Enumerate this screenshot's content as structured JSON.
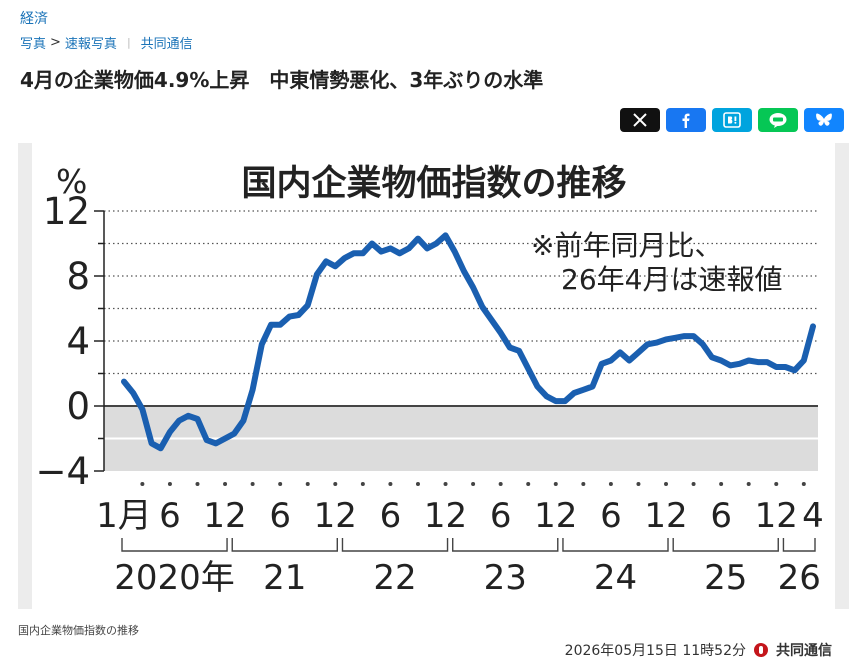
{
  "category": "経済",
  "breadcrumb": {
    "items": [
      "写真",
      "速報写真",
      "共同通信"
    ]
  },
  "headline": "4月の企業物価4.9%上昇　中東情勢悪化、3年ぶりの水準",
  "share": {
    "buttons": [
      {
        "icon": "x-icon",
        "color": "#111111"
      },
      {
        "icon": "facebook-icon",
        "color": "#1877f2"
      },
      {
        "icon": "hatena-icon",
        "color": "#00a4de"
      },
      {
        "icon": "line-icon",
        "color": "#06c755"
      },
      {
        "icon": "bluesky-icon",
        "color": "#1185fe"
      }
    ]
  },
  "caption": "国内企業物価指数の推移",
  "footer": {
    "timestamp": "2026年05月15日 11時52分",
    "agency": "共同通信"
  },
  "chart_data": {
    "type": "line",
    "title": "国内企業物価指数の推移",
    "unit": "%",
    "annotation": [
      "※前年同月比、",
      "26年4月は速報値"
    ],
    "ylim": [
      -4,
      12
    ],
    "yticks": [
      12,
      8,
      4,
      0,
      -4
    ],
    "ytick_labels": [
      "12",
      "8",
      "4",
      "0",
      "−4"
    ],
    "xtick_labels": [
      {
        "index": 0,
        "label": "1月"
      },
      {
        "index": 5,
        "label": "6"
      },
      {
        "index": 11,
        "label": "12"
      },
      {
        "index": 17,
        "label": "6"
      },
      {
        "index": 23,
        "label": "12"
      },
      {
        "index": 29,
        "label": "6"
      },
      {
        "index": 35,
        "label": "12"
      },
      {
        "index": 41,
        "label": "6"
      },
      {
        "index": 47,
        "label": "12"
      },
      {
        "index": 53,
        "label": "6"
      },
      {
        "index": 59,
        "label": "12"
      },
      {
        "index": 65,
        "label": "6"
      },
      {
        "index": 71,
        "label": "12"
      },
      {
        "index": 75,
        "label": "4"
      }
    ],
    "years": [
      {
        "label": "2020年",
        "start": 0,
        "end": 11
      },
      {
        "label": "21",
        "start": 12,
        "end": 23
      },
      {
        "label": "22",
        "start": 24,
        "end": 35
      },
      {
        "label": "23",
        "start": 36,
        "end": 47
      },
      {
        "label": "24",
        "start": 48,
        "end": 59
      },
      {
        "label": "25",
        "start": 60,
        "end": 71
      },
      {
        "label": "26",
        "start": 72,
        "end": 75
      }
    ],
    "line_color": "#1a5fb0",
    "values": [
      1.5,
      0.8,
      -0.2,
      -2.3,
      -2.6,
      -1.6,
      -0.9,
      -0.6,
      -0.8,
      -2.1,
      -2.3,
      -2.0,
      -1.7,
      -0.9,
      1.0,
      3.8,
      5.0,
      5.0,
      5.5,
      5.6,
      6.2,
      8.1,
      8.9,
      8.6,
      9.1,
      9.4,
      9.4,
      10.0,
      9.5,
      9.7,
      9.4,
      9.7,
      10.3,
      9.7,
      10.0,
      10.5,
      9.5,
      8.3,
      7.3,
      6.1,
      5.3,
      4.5,
      3.6,
      3.4,
      2.3,
      1.2,
      0.6,
      0.3,
      0.3,
      0.8,
      1.0,
      1.2,
      2.6,
      2.8,
      3.3,
      2.8,
      3.3,
      3.8,
      3.9,
      4.1,
      4.2,
      4.3,
      4.3,
      3.8,
      3.0,
      2.8,
      2.5,
      2.6,
      2.8,
      2.7,
      2.7,
      2.4,
      2.4,
      2.2,
      2.8,
      4.9
    ]
  }
}
